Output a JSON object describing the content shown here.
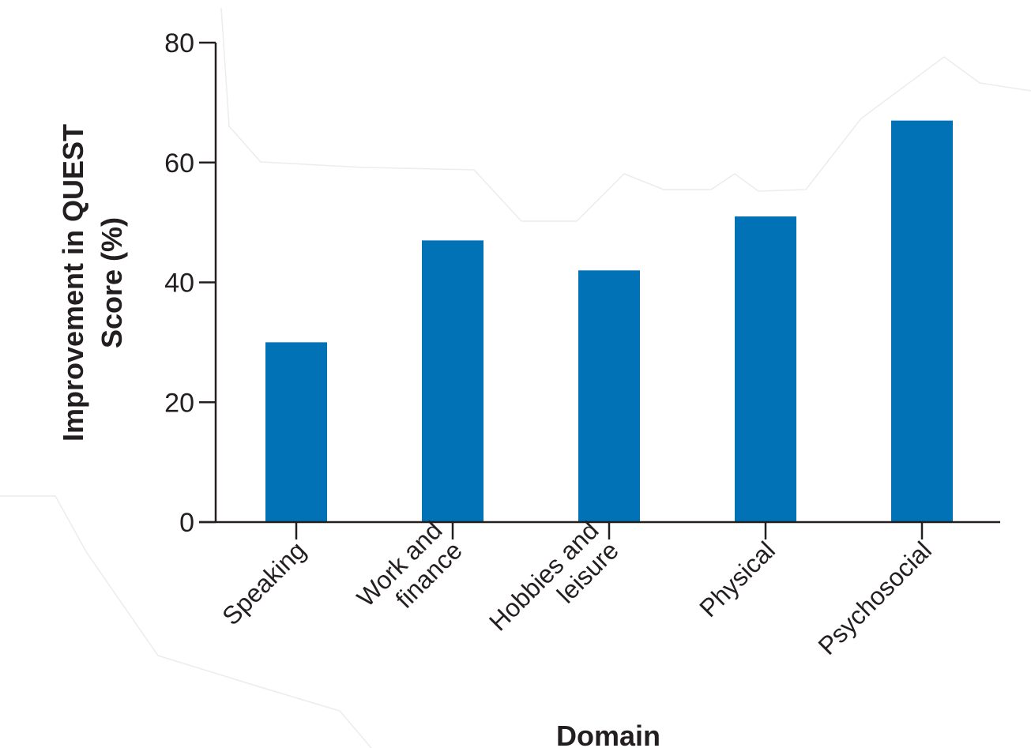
{
  "chart_data": {
    "type": "bar",
    "title": "",
    "xlabel": "Domain",
    "ylabel_lines": [
      "Improvement in QUEST",
      "Score (%)"
    ],
    "categories": [
      [
        "Speaking"
      ],
      [
        "Work and",
        "finance"
      ],
      [
        "Hobbies and",
        "leisure"
      ],
      [
        "Physical"
      ],
      [
        "Psychosocial"
      ]
    ],
    "values": [
      30,
      47,
      42,
      51,
      67
    ],
    "ylim": [
      0,
      80
    ],
    "yticks": [
      0,
      20,
      40,
      60,
      80
    ],
    "bar_color": "#0072b5",
    "axis_color": "#231f20",
    "grid": false
  }
}
